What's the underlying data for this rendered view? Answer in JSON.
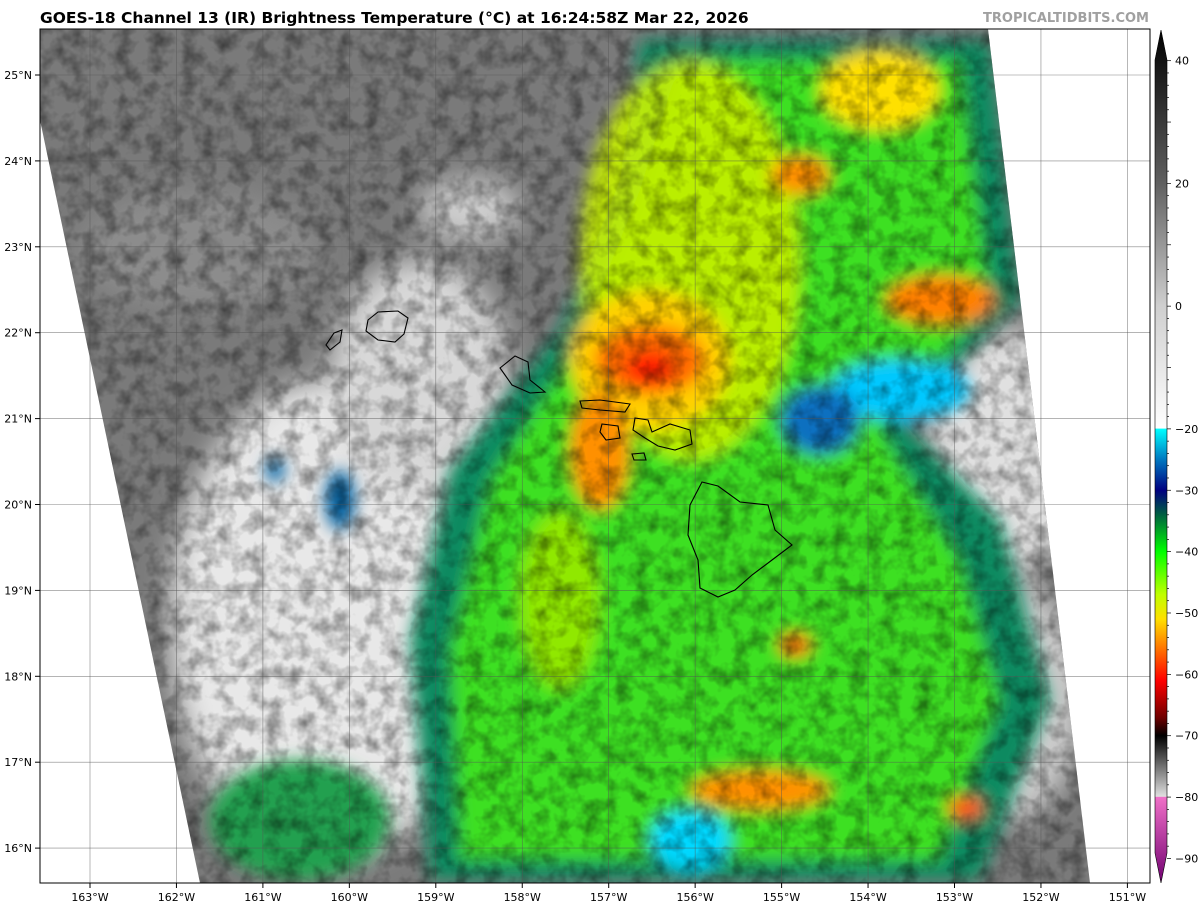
{
  "header": {
    "title": "GOES-18 Channel 13 (IR) Brightness Temperature (°C) at 16:24:58Z Mar 22, 2026",
    "watermark": "TROPICALTIDBITS.COM"
  },
  "map": {
    "lon_ticks": [
      "163°W",
      "162°W",
      "161°W",
      "160°W",
      "159°W",
      "158°W",
      "157°W",
      "156°W",
      "155°W",
      "154°W",
      "153°W",
      "152°W",
      "151°W"
    ],
    "lat_ticks": [
      "25°N",
      "24°N",
      "23°N",
      "22°N",
      "21°N",
      "20°N",
      "19°N",
      "18°N",
      "17°N",
      "16°N"
    ],
    "gridlines": true,
    "background_color": "#808080"
  },
  "colorbar": {
    "ticks": [
      "40",
      "20",
      "0",
      "−20",
      "−30",
      "−40",
      "−50",
      "−60",
      "−70",
      "−80",
      "−90"
    ],
    "tick_values": [
      40,
      20,
      0,
      -20,
      -30,
      -40,
      -50,
      -60,
      -70,
      -80,
      -90
    ],
    "range": [
      -94,
      45
    ],
    "stops": [
      {
        "v": 45,
        "c": "#000000"
      },
      {
        "v": 20,
        "c": "#606060"
      },
      {
        "v": 0,
        "c": "#cfcfcf"
      },
      {
        "v": -19.9,
        "c": "#ffffff"
      },
      {
        "v": -20,
        "c": "#00ffff"
      },
      {
        "v": -25,
        "c": "#0078c0"
      },
      {
        "v": -30,
        "c": "#000080"
      },
      {
        "v": -34,
        "c": "#006040"
      },
      {
        "v": -40,
        "c": "#00ff00"
      },
      {
        "v": -47,
        "c": "#c0ff00"
      },
      {
        "v": -51,
        "c": "#ffe000"
      },
      {
        "v": -56,
        "c": "#ff7000"
      },
      {
        "v": -61,
        "c": "#ff0000"
      },
      {
        "v": -67,
        "c": "#700000"
      },
      {
        "v": -70,
        "c": "#000000"
      },
      {
        "v": -79.9,
        "c": "#e0e0e0"
      },
      {
        "v": -80,
        "c": "#f070c8"
      },
      {
        "v": -94,
        "c": "#700070"
      }
    ]
  }
}
